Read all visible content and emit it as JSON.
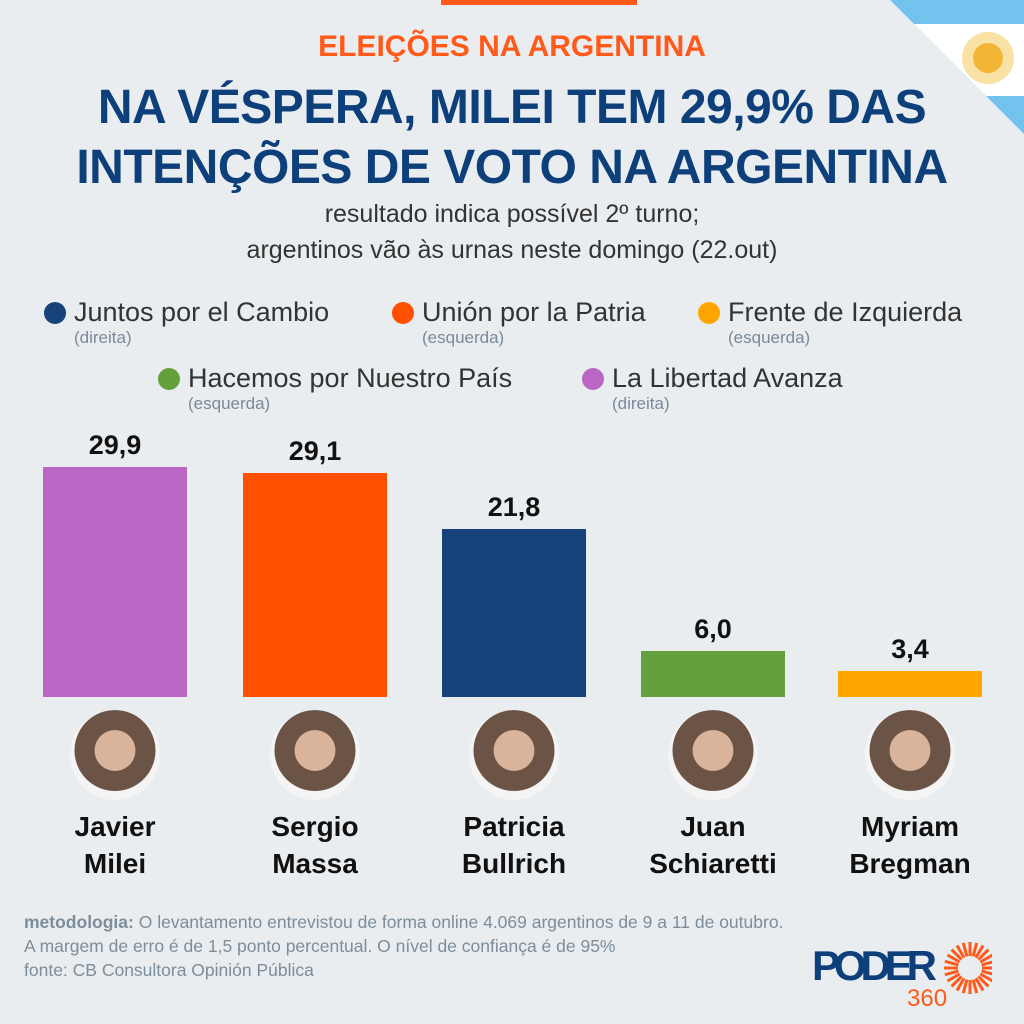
{
  "kicker": "ELEIÇÕES NA ARGENTINA",
  "title": [
    "NA VÉSPERA, MILEI TEM 29,9% DAS",
    "INTENÇÕES DE VOTO NA ARGENTINA"
  ],
  "subtitle": [
    "resultado indica possível 2º turno;",
    "argentinos vão às urnas neste domingo (22.out)"
  ],
  "legend": [
    {
      "name": "Juntos por el Cambio",
      "note": "(direita)",
      "color": "#17427a"
    },
    {
      "name": "Unión por la Patria",
      "note": "(esquerda)",
      "color": "#ff5000"
    },
    {
      "name": "Frente de Izquierda",
      "note": "(esquerda)",
      "color": "#ffa500"
    },
    {
      "name": "Hacemos por Nuestro País",
      "note": "(esquerda)",
      "color": "#64a03c"
    },
    {
      "name": "La Libertad Avanza",
      "note": "(direita)",
      "color": "#b966c4"
    }
  ],
  "chart_data": {
    "type": "bar",
    "categories": [
      "Javier Milei",
      "Sergio Massa",
      "Patricia Bullrich",
      "Juan Schiaretti",
      "Myriam Bregman"
    ],
    "name_lines": [
      [
        "Javier",
        "Milei"
      ],
      [
        "Sergio",
        "Massa"
      ],
      [
        "Patricia",
        "Bullrich"
      ],
      [
        "Juan",
        "Schiaretti"
      ],
      [
        "Myriam",
        "Bregman"
      ]
    ],
    "values": [
      29.9,
      29.1,
      21.8,
      6.0,
      3.4
    ],
    "labels": [
      "29,9",
      "29,1",
      "21,8",
      "6,0",
      "3,4"
    ],
    "parties": [
      "La Libertad Avanza",
      "Unión por la Patria",
      "Juntos por el Cambio",
      "Hacemos por Nuestro País",
      "Frente de Izquierda"
    ],
    "colors": [
      "#b966c4",
      "#ff5000",
      "#17427a",
      "#64a03c",
      "#ffa500"
    ],
    "ylim": [
      0,
      30
    ],
    "grid": false
  },
  "footer": {
    "method_label": "metodologia:",
    "method_text": " O levantamento entrevistou de forma online 4.069 argentinos de 9 a 11 de outubro. A margem de erro é de 1,5 ponto percentual. O nível de confiança é de 95%",
    "source": "fonte: CB Consultora Opinión Pública"
  },
  "logo": {
    "word": "PODER",
    "number": "360",
    "colors": {
      "word": "#0d3f7a",
      "accent": "#ff5a1a"
    }
  }
}
